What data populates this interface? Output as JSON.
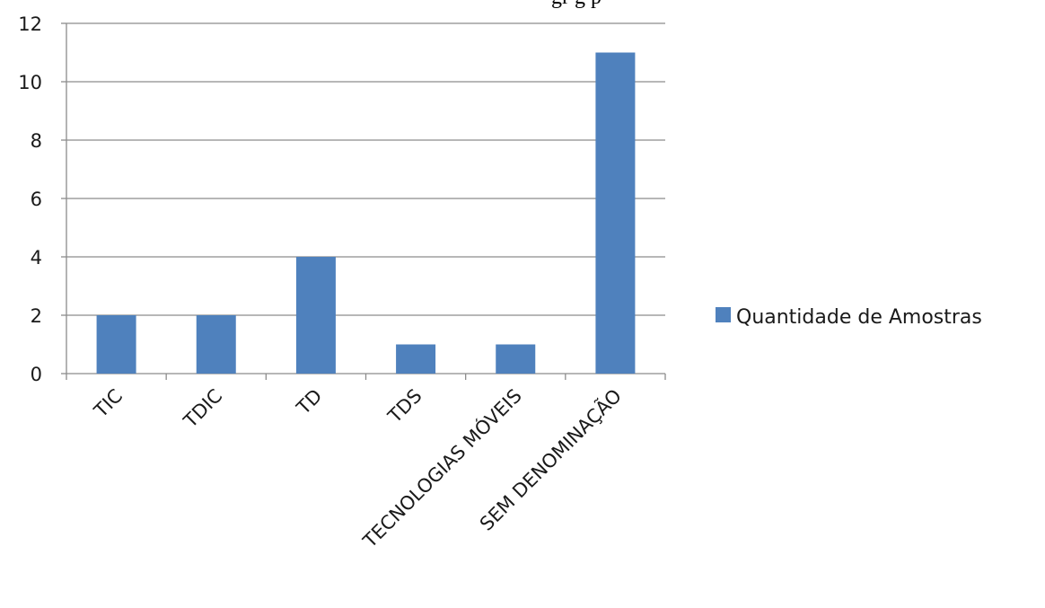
{
  "chart_data": {
    "type": "bar",
    "title": "",
    "xlabel": "",
    "ylabel": "",
    "categories": [
      "TIC",
      "TDIC",
      "TD",
      "TDS",
      "TECNOLOGIAS MÓVEIS",
      "SEM DENOMINAÇÃO"
    ],
    "series": [
      {
        "name": "Quantidade de Amostras",
        "values": [
          2,
          2,
          4,
          1,
          1,
          11
        ],
        "color": "#4f81bd"
      }
    ],
    "ylim": [
      0,
      12
    ],
    "yticks": [
      0,
      2,
      4,
      6,
      8,
      10,
      12
    ],
    "grid": true,
    "legend_position": "right"
  },
  "title_fragment": "gr       g     p"
}
